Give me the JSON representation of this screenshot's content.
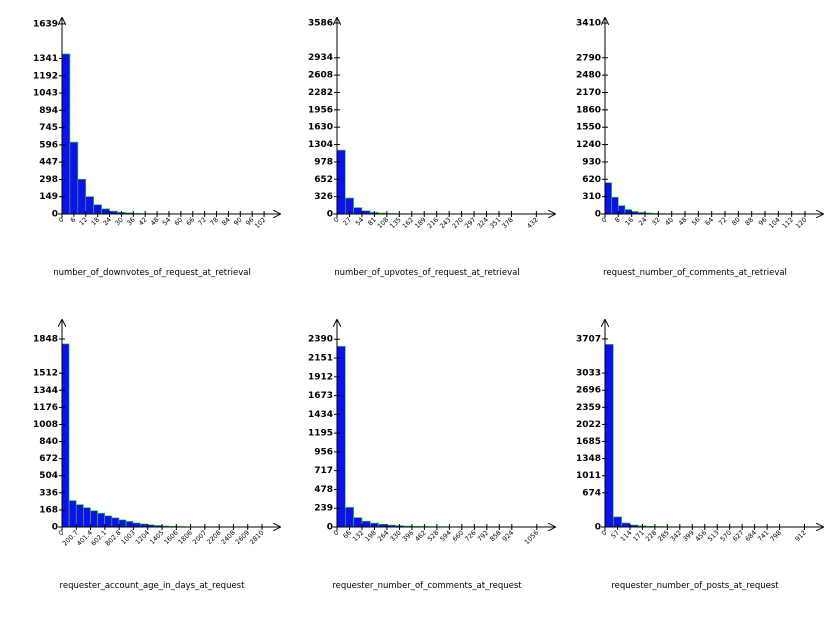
{
  "chart_data": [
    {
      "type": "histogram",
      "x_label": "number_of_downvotes_of_request_at_retrieval",
      "color": "#1010ee",
      "edge_color": "#22dd22",
      "bins": [
        0,
        4,
        8,
        12,
        16,
        20,
        24,
        28,
        32,
        36,
        40,
        44,
        48,
        52,
        56,
        60,
        64,
        68,
        72,
        76,
        80,
        84,
        88,
        92,
        96,
        100,
        104
      ],
      "values": [
        1380,
        620,
        300,
        150,
        80,
        45,
        25,
        15,
        10,
        6,
        4,
        3,
        2,
        2,
        1,
        1,
        1,
        0,
        1,
        0,
        0,
        1,
        0,
        0,
        0,
        1
      ],
      "xlim": [
        0,
        106
      ],
      "ylim": [
        0,
        1690
      ],
      "xticks": [
        0,
        6,
        12,
        18,
        24,
        30,
        36,
        42,
        48,
        54,
        60,
        66,
        72,
        78,
        84,
        90,
        96,
        102
      ],
      "yticks": [
        0,
        149,
        298,
        447,
        596,
        745,
        894,
        1043,
        1192,
        1341,
        1639
      ]
    },
    {
      "type": "histogram",
      "x_label": "number_of_upvotes_of_request_at_retrieval",
      "color": "#1010ee",
      "edge_color": "#22dd22",
      "bins": [
        0,
        18,
        36,
        54,
        72,
        90,
        108,
        126,
        144,
        162,
        180,
        198,
        216,
        234,
        252,
        270,
        288,
        306,
        324,
        342,
        360,
        378,
        396,
        414,
        432,
        450
      ],
      "values": [
        1200,
        300,
        120,
        60,
        30,
        18,
        10,
        6,
        4,
        3,
        2,
        2,
        1,
        1,
        1,
        0,
        1,
        0,
        0,
        1,
        0,
        0,
        0,
        0,
        1
      ],
      "xlim": [
        0,
        455
      ],
      "ylim": [
        0,
        3680
      ],
      "xticks": [
        0,
        27,
        54,
        81,
        108,
        135,
        162,
        189,
        216,
        243,
        270,
        297,
        324,
        351,
        378,
        432
      ],
      "yticks": [
        0,
        326,
        652,
        978,
        1304,
        1630,
        1956,
        2282,
        2608,
        2934,
        3586
      ]
    },
    {
      "type": "histogram",
      "x_label": "request_number_of_comments_at_retrieval",
      "color": "#1010ee",
      "edge_color": "#22dd22",
      "bins": [
        0,
        4,
        8,
        12,
        16,
        20,
        24,
        28,
        32,
        36,
        40,
        44,
        48,
        52,
        56,
        60,
        64,
        68,
        72,
        76,
        80,
        84,
        88,
        92,
        96,
        100,
        104,
        108,
        112,
        116,
        120,
        124
      ],
      "values": [
        560,
        300,
        150,
        80,
        45,
        28,
        18,
        12,
        8,
        6,
        4,
        3,
        2,
        2,
        1,
        1,
        1,
        1,
        0,
        1,
        0,
        1,
        0,
        0,
        1,
        0,
        0,
        0,
        0,
        0,
        1
      ],
      "xlim": [
        0,
        126
      ],
      "ylim": [
        0,
        3500
      ],
      "xticks": [
        0,
        8,
        16,
        24,
        32,
        40,
        48,
        56,
        64,
        72,
        80,
        88,
        96,
        104,
        112,
        120
      ],
      "yticks": [
        0,
        310,
        620,
        930,
        1240,
        1550,
        1860,
        2170,
        2480,
        2790,
        3410
      ]
    },
    {
      "type": "histogram",
      "x_label": "requester_account_age_in_days_at_request",
      "color": "#1010ee",
      "edge_color": "#22dd22",
      "bins": [
        0,
        100,
        200,
        300,
        400,
        500,
        600,
        700,
        800,
        900,
        1000,
        1100,
        1200,
        1300,
        1400,
        1500,
        1600,
        1700,
        1800,
        1900,
        2000,
        2100,
        2200,
        2300,
        2400,
        2500,
        2600,
        2700,
        2800,
        2900
      ],
      "values": [
        1800,
        260,
        220,
        190,
        160,
        135,
        110,
        90,
        70,
        55,
        40,
        30,
        22,
        15,
        10,
        7,
        5,
        3,
        2,
        1,
        1,
        1,
        0,
        0,
        0,
        0,
        0,
        0,
        0
      ],
      "xlim": [
        0,
        2950
      ],
      "ylim": [
        0,
        2035
      ],
      "xticks": [
        0,
        200.7,
        401.4,
        602.1,
        802.8,
        1003,
        1204,
        1405,
        1606,
        1806,
        2007,
        2208,
        2408,
        2609,
        2810
      ],
      "yticks": [
        0,
        168,
        336,
        504,
        672,
        840,
        1008,
        1176,
        1344,
        1512,
        1848
      ]
    },
    {
      "type": "histogram",
      "x_label": "requester_number_of_comments_at_request",
      "color": "#1010ee",
      "edge_color": "#22dd22",
      "bins": [
        0,
        44,
        88,
        132,
        176,
        220,
        264,
        308,
        352,
        396,
        440,
        484,
        528,
        572,
        616,
        660,
        704,
        748,
        792,
        836,
        880,
        924,
        968,
        1012,
        1056,
        1100
      ],
      "values": [
        2300,
        250,
        120,
        75,
        50,
        35,
        25,
        18,
        12,
        9,
        7,
        5,
        4,
        3,
        2,
        2,
        1,
        1,
        1,
        1,
        0,
        1,
        0,
        0,
        1
      ],
      "xlim": [
        0,
        1110
      ],
      "ylim": [
        0,
        2635
      ],
      "xticks": [
        0,
        66,
        132,
        198,
        264,
        330,
        396,
        462,
        528,
        594,
        660,
        726,
        792,
        858,
        924,
        1056
      ],
      "yticks": [
        0,
        239,
        478,
        717,
        956,
        1195,
        1434,
        1673,
        1912,
        2151,
        2390
      ]
    },
    {
      "type": "histogram",
      "x_label": "requester_number_of_posts_at_request",
      "color": "#1010ee",
      "edge_color": "#22dd22",
      "bins": [
        0,
        38,
        76,
        114,
        152,
        190,
        228,
        266,
        304,
        342,
        380,
        418,
        456,
        494,
        532,
        570,
        608,
        646,
        684,
        722,
        760,
        798,
        836,
        874,
        912,
        950
      ],
      "values": [
        3600,
        200,
        80,
        40,
        22,
        14,
        9,
        6,
        4,
        3,
        2,
        2,
        1,
        1,
        1,
        1,
        0,
        1,
        0,
        0,
        0,
        1,
        0,
        0,
        0
      ],
      "xlim": [
        0,
        960
      ],
      "ylim": [
        0,
        4080
      ],
      "xticks": [
        0,
        57,
        114,
        171,
        228,
        285,
        342,
        399,
        456,
        513,
        570,
        627,
        684,
        741,
        798,
        912
      ],
      "yticks": [
        0,
        674,
        1011,
        1348,
        1685,
        2022,
        2359,
        2696,
        3033,
        3707
      ]
    }
  ]
}
